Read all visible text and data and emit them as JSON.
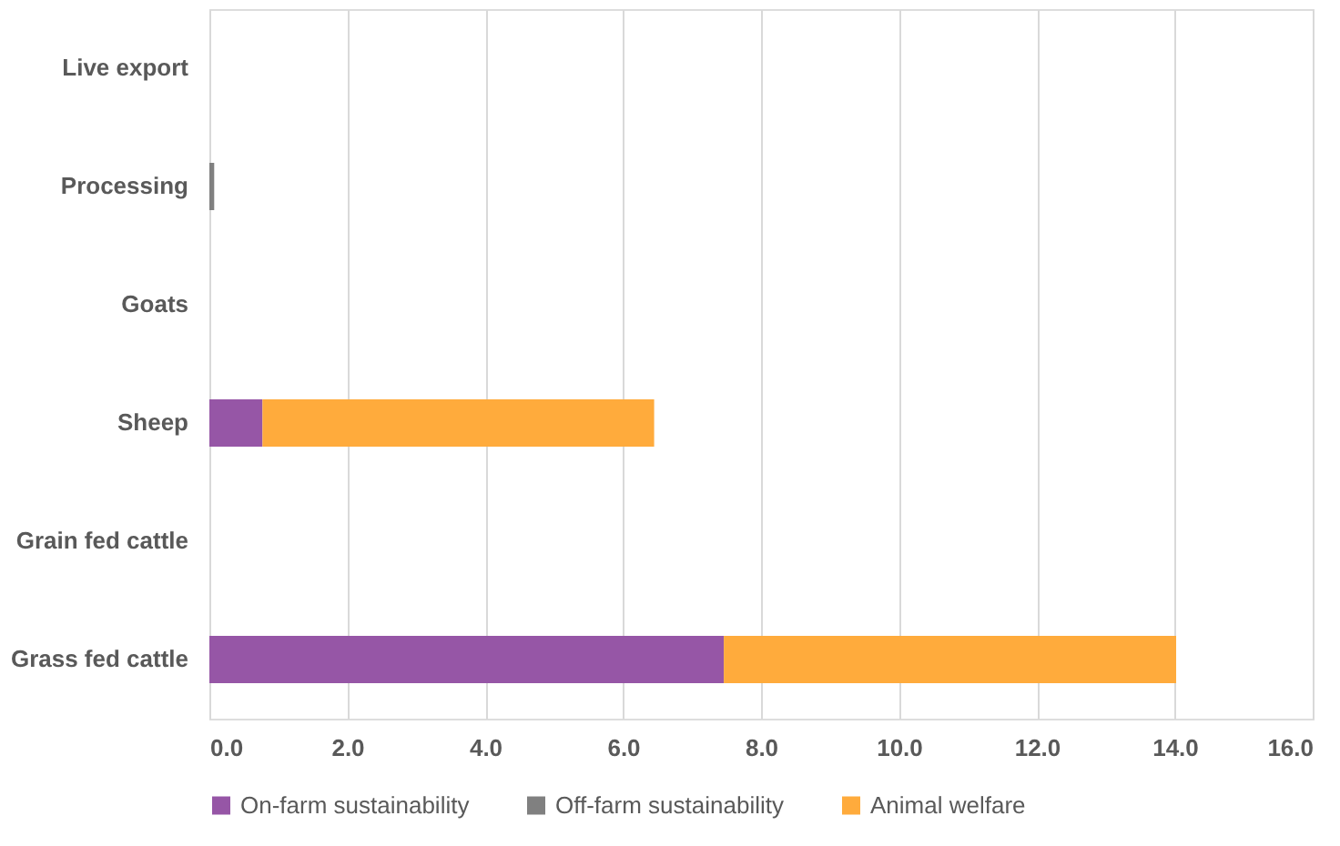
{
  "chart_data": {
    "type": "bar",
    "orientation": "horizontal",
    "stacked": true,
    "categories": [
      "Live export",
      "Processing",
      "Goats",
      "Sheep",
      "Grain fed cattle",
      "Grass fed cattle"
    ],
    "series": [
      {
        "name": "On-farm sustainability",
        "color": "#9656a6",
        "values": [
          0,
          0,
          0,
          0.77,
          0,
          7.46
        ]
      },
      {
        "name": "Off-farm sustainability",
        "color": "#808080",
        "values": [
          0,
          0.07,
          0,
          0,
          0,
          0
        ]
      },
      {
        "name": "Animal welfare",
        "color": "#ffab3c",
        "values": [
          0,
          0,
          0,
          5.68,
          0,
          6.56
        ]
      }
    ],
    "xlim": [
      0,
      16
    ],
    "xticks": [
      {
        "value": 0,
        "label": "0.0"
      },
      {
        "value": 2,
        "label": "2.0"
      },
      {
        "value": 4,
        "label": "4.0"
      },
      {
        "value": 6,
        "label": "6.0"
      },
      {
        "value": 8,
        "label": "8.0"
      },
      {
        "value": 10,
        "label": "10.0"
      },
      {
        "value": 12,
        "label": "12.0"
      },
      {
        "value": 14,
        "label": "14.0"
      },
      {
        "value": 16,
        "label": "16.0"
      }
    ],
    "grid": "x",
    "legend": "bottom"
  }
}
